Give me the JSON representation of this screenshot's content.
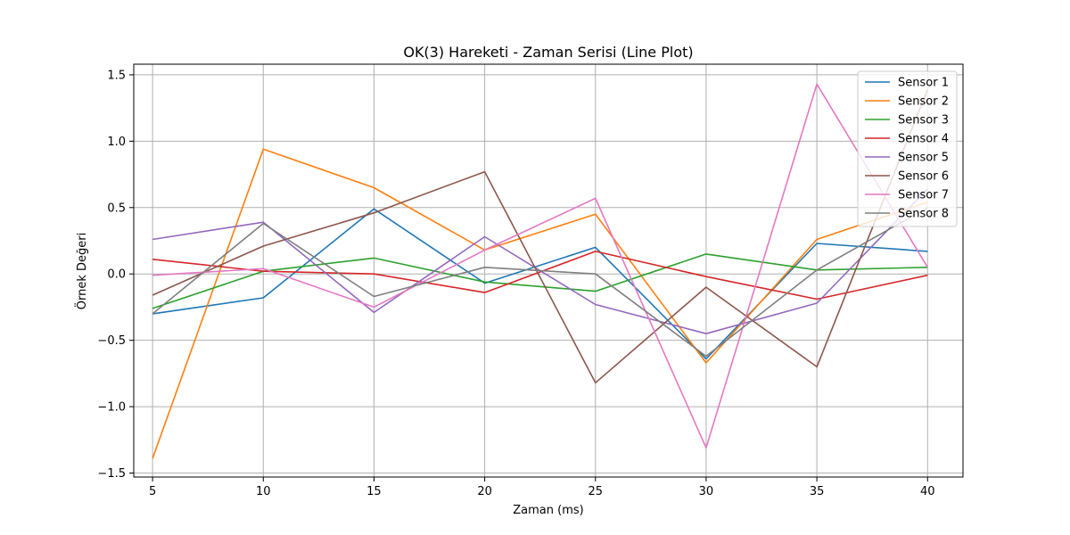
{
  "chart_data": {
    "type": "line",
    "title": "OK(3) Hareketi - Zaman Serisi (Line Plot)",
    "xlabel": "Zaman (ms)",
    "ylabel": "Örnek Değeri",
    "x": [
      5,
      10,
      15,
      20,
      25,
      30,
      35,
      40
    ],
    "xticks": [
      "5",
      "10",
      "15",
      "20",
      "25",
      "30",
      "35",
      "40"
    ],
    "yticks": [
      -1.5,
      -1.0,
      -0.5,
      0.0,
      0.5,
      1.0,
      1.5
    ],
    "ytick_labels": [
      "−1.5",
      "−1.0",
      "−0.5",
      "0.0",
      "0.5",
      "1.0",
      "1.5"
    ],
    "xlim": [
      4.15,
      41.6
    ],
    "ylim": [
      -1.53,
      1.58
    ],
    "grid": true,
    "legend_position": "top-right",
    "series": [
      {
        "name": "Sensor 1",
        "color": "#1f77b4",
        "values": [
          -0.3,
          -0.18,
          0.49,
          -0.07,
          0.2,
          -0.64,
          0.23,
          0.17
        ]
      },
      {
        "name": "Sensor 2",
        "color": "#ff7f0e",
        "values": [
          -1.39,
          0.94,
          0.65,
          0.18,
          0.45,
          -0.67,
          0.26,
          0.54
        ]
      },
      {
        "name": "Sensor 3",
        "color": "#2ca02c",
        "values": [
          -0.26,
          0.02,
          0.12,
          -0.06,
          -0.13,
          0.15,
          0.03,
          0.05
        ]
      },
      {
        "name": "Sensor 4",
        "color": "#d62728",
        "values": [
          0.11,
          0.02,
          0.0,
          -0.14,
          0.17,
          -0.02,
          -0.19,
          -0.01
        ]
      },
      {
        "name": "Sensor 5",
        "color": "#9467bd",
        "values": [
          0.26,
          0.39,
          -0.29,
          0.28,
          -0.23,
          -0.45,
          -0.22,
          0.64
        ]
      },
      {
        "name": "Sensor 6",
        "color": "#8c564b",
        "values": [
          -0.16,
          0.21,
          0.46,
          0.77,
          -0.82,
          -0.1,
          -0.7,
          1.39
        ]
      },
      {
        "name": "Sensor 7",
        "color": "#e377c2",
        "values": [
          -0.01,
          0.04,
          -0.25,
          0.18,
          0.57,
          -1.31,
          1.43,
          0.05
        ]
      },
      {
        "name": "Sensor 8",
        "color": "#7f7f7f",
        "values": [
          -0.3,
          0.38,
          -0.17,
          0.05,
          0.0,
          -0.62,
          0.03,
          0.5
        ]
      }
    ]
  }
}
